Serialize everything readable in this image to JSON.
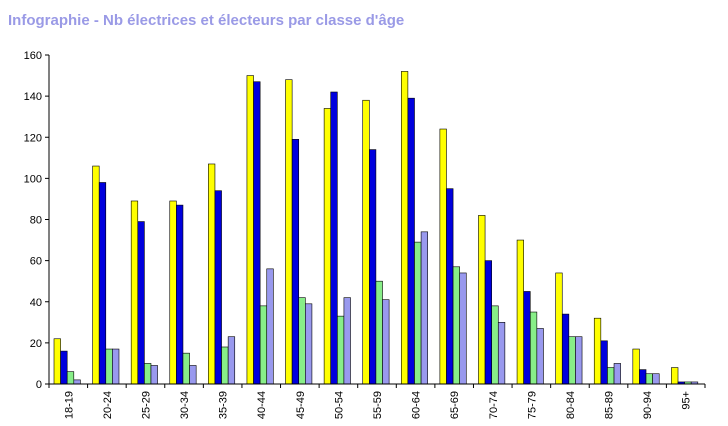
{
  "chart_data": {
    "type": "bar",
    "title": "Infographie - Nb électrices et électeurs par classe d'âge",
    "xlabel": "",
    "ylabel": "",
    "ylim": [
      0,
      160
    ],
    "yticks": [
      0,
      20,
      40,
      60,
      80,
      100,
      120,
      140,
      160
    ],
    "grid": false,
    "legend": "none",
    "categories": [
      "18-19",
      "20-24",
      "25-29",
      "30-34",
      "35-39",
      "40-44",
      "45-49",
      "50-54",
      "55-59",
      "60-64",
      "65-69",
      "70-74",
      "75-79",
      "80-84",
      "85-89",
      "90-94",
      "95+"
    ],
    "series": [
      {
        "color": "#ffff00",
        "values": [
          22,
          106,
          89,
          89,
          107,
          150,
          148,
          134,
          138,
          152,
          124,
          82,
          70,
          54,
          32,
          17,
          8
        ]
      },
      {
        "color": "#0000dd",
        "values": [
          16,
          98,
          79,
          87,
          94,
          147,
          119,
          142,
          114,
          139,
          95,
          60,
          45,
          34,
          21,
          7,
          1
        ]
      },
      {
        "color": "#88ee88",
        "values": [
          6,
          17,
          10,
          15,
          18,
          38,
          42,
          33,
          50,
          69,
          57,
          38,
          35,
          23,
          8,
          5,
          1
        ]
      },
      {
        "color": "#9999ee",
        "values": [
          2,
          17,
          9,
          9,
          23,
          56,
          39,
          42,
          41,
          74,
          54,
          30,
          27,
          23,
          10,
          5,
          1
        ]
      }
    ]
  }
}
